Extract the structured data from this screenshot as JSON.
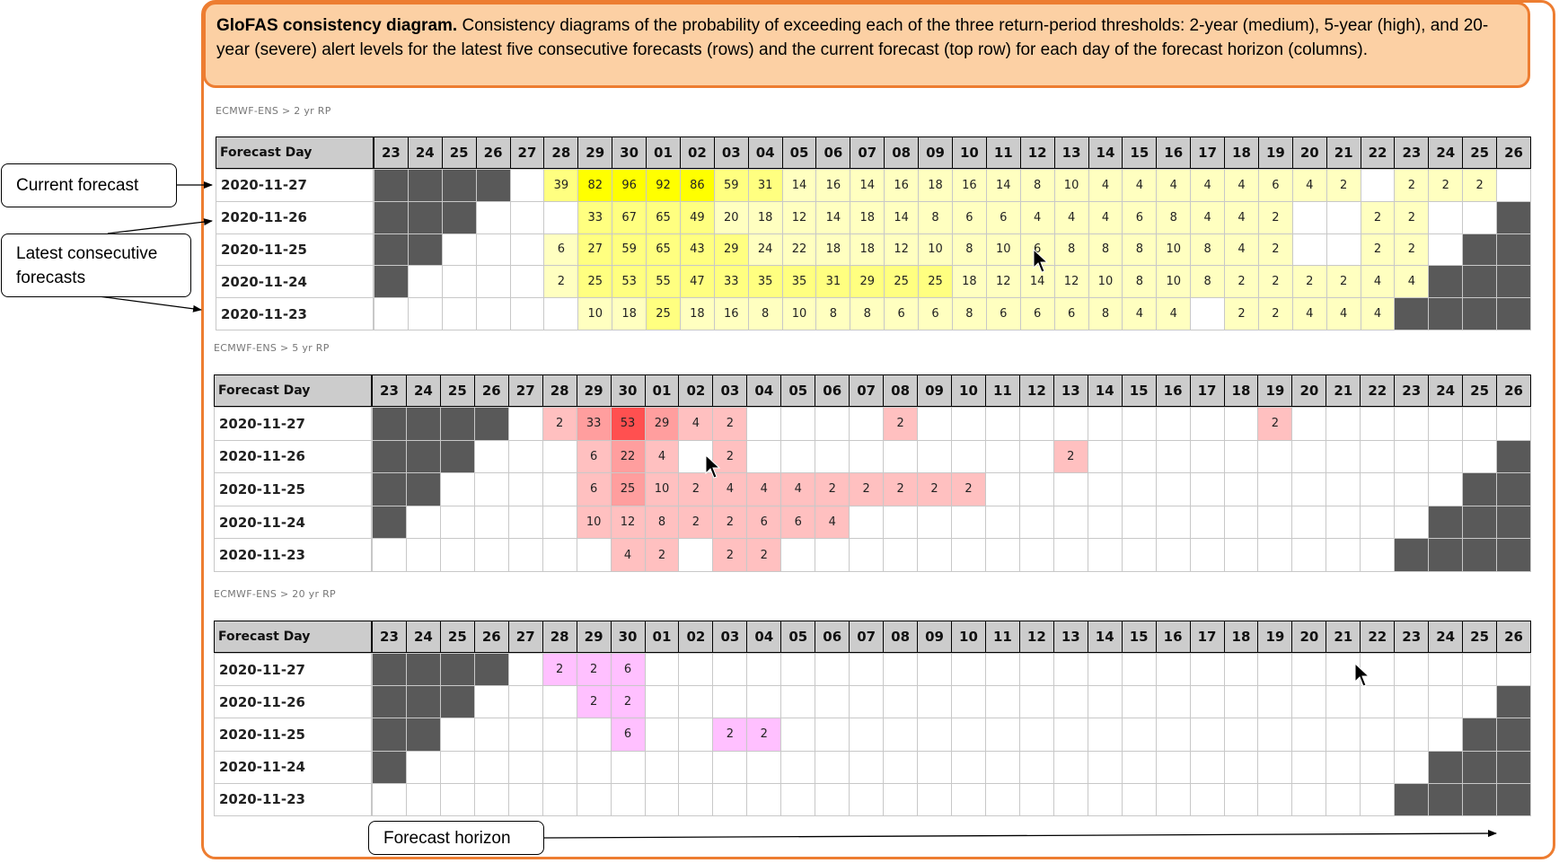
{
  "caption": {
    "bold": "GloFAS consistency diagram.",
    "text": " Consistency diagrams of the probability of exceeding each of the three return-period thresholds: 2-year (medium), 5-year (high), and 20-year (severe) alert levels for the latest five consecutive forecasts (rows) and the current forecast (top row) for each day of the forecast horizon (columns)."
  },
  "callouts": {
    "current": "Current forecast",
    "latest": "Latest consecutive forecasts",
    "horizon": "Forecast horizon"
  },
  "columns": [
    "23",
    "24",
    "25",
    "26",
    "27",
    "28",
    "29",
    "30",
    "01",
    "02",
    "03",
    "04",
    "05",
    "06",
    "07",
    "08",
    "09",
    "10",
    "11",
    "12",
    "13",
    "14",
    "15",
    "16",
    "17",
    "18",
    "19",
    "20",
    "21",
    "22",
    "23",
    "24",
    "25",
    "26"
  ],
  "header_first": "Forecast Day",
  "rows": [
    "2020-11-27",
    "2020-11-26",
    "2020-11-25",
    "2020-11-24",
    "2020-11-23"
  ],
  "colors": {
    "gray": "#595959",
    "yellow_light": "#ffffc0",
    "yellow_mid": "#ffff80",
    "yellow_strong": "#ffff00",
    "red_light": "#ffc0c0",
    "red_mid": "#ff9e9e",
    "red_strong": "#ff5050",
    "pink": "#ffc0ff",
    "accent": "#ed7d31"
  },
  "sections": [
    {
      "label": "ECMWF-ENS > 2 yr RP",
      "values": [
        [
          "G",
          "G",
          "G",
          "G",
          "",
          "39",
          "82",
          "96",
          "92",
          "86",
          "59",
          "31",
          "14",
          "16",
          "14",
          "16",
          "18",
          "16",
          "14",
          "8",
          "10",
          "4",
          "4",
          "4",
          "4",
          "4",
          "6",
          "4",
          "2",
          "",
          "2",
          "2",
          "2",
          ""
        ],
        [
          "G",
          "G",
          "G",
          "",
          "",
          "",
          "33",
          "67",
          "65",
          "49",
          "20",
          "18",
          "12",
          "14",
          "18",
          "14",
          "8",
          "6",
          "6",
          "4",
          "4",
          "4",
          "6",
          "8",
          "4",
          "4",
          "2",
          "",
          "",
          "2",
          "2",
          "",
          "",
          "G"
        ],
        [
          "G",
          "G",
          "",
          "",
          "",
          "6",
          "27",
          "59",
          "65",
          "43",
          "29",
          "24",
          "22",
          "18",
          "18",
          "12",
          "10",
          "8",
          "10",
          "6",
          "8",
          "8",
          "8",
          "10",
          "8",
          "4",
          "2",
          "",
          "",
          "2",
          "2",
          "",
          "G",
          "G"
        ],
        [
          "G",
          "",
          "",
          "",
          "",
          "2",
          "25",
          "53",
          "55",
          "47",
          "33",
          "35",
          "35",
          "31",
          "29",
          "25",
          "25",
          "18",
          "12",
          "14",
          "12",
          "10",
          "8",
          "10",
          "8",
          "2",
          "2",
          "2",
          "2",
          "4",
          "4",
          "G",
          "G",
          "G"
        ],
        [
          "",
          "",
          "",
          "",
          "",
          "",
          "10",
          "18",
          "25",
          "18",
          "16",
          "8",
          "10",
          "8",
          "8",
          "6",
          "6",
          "8",
          "6",
          "6",
          "6",
          "8",
          "4",
          "4",
          "",
          "2",
          "2",
          "4",
          "4",
          "4",
          "G",
          "G",
          "G",
          "G"
        ]
      ]
    },
    {
      "label": "ECMWF-ENS > 5 yr RP",
      "values": [
        [
          "G",
          "G",
          "G",
          "G",
          "",
          "2",
          "33",
          "53",
          "29",
          "4",
          "2",
          "",
          "",
          "",
          "",
          "2",
          "",
          "",
          "",
          "",
          "",
          "",
          "",
          "",
          "",
          "",
          "2",
          "",
          "",
          "",
          "",
          "",
          "",
          ""
        ],
        [
          "G",
          "G",
          "G",
          "",
          "",
          "",
          "6",
          "22",
          "4",
          "",
          "2",
          "",
          "",
          "",
          "",
          "",
          "",
          "",
          "",
          "",
          "2",
          "",
          "",
          "",
          "",
          "",
          "",
          "",
          "",
          "",
          "",
          "",
          "",
          "G"
        ],
        [
          "G",
          "G",
          "",
          "",
          "",
          "",
          "6",
          "25",
          "10",
          "2",
          "4",
          "4",
          "4",
          "2",
          "2",
          "2",
          "2",
          "2",
          "",
          "",
          "",
          "",
          "",
          "",
          "",
          "",
          "",
          "",
          "",
          "",
          "",
          "",
          "G",
          "G"
        ],
        [
          "G",
          "",
          "",
          "",
          "",
          "",
          "10",
          "12",
          "8",
          "2",
          "2",
          "6",
          "6",
          "4",
          "",
          "",
          "",
          "",
          "",
          "",
          "",
          "",
          "",
          "",
          "",
          "",
          "",
          "",
          "",
          "",
          "",
          "G",
          "G",
          "G"
        ],
        [
          "",
          "",
          "",
          "",
          "",
          "",
          "",
          "4",
          "2",
          "",
          "2",
          "2",
          "",
          "",
          "",
          "",
          "",
          "",
          "",
          "",
          "",
          "",
          "",
          "",
          "",
          "",
          "",
          "",
          "",
          "",
          "G",
          "G",
          "G",
          "G"
        ]
      ]
    },
    {
      "label": "ECMWF-ENS > 20 yr RP",
      "values": [
        [
          "G",
          "G",
          "G",
          "G",
          "",
          "2",
          "2",
          "6",
          "",
          "",
          "",
          "",
          "",
          "",
          "",
          "",
          "",
          "",
          "",
          "",
          "",
          "",
          "",
          "",
          "",
          "",
          "",
          "",
          "",
          "",
          "",
          "",
          "",
          ""
        ],
        [
          "G",
          "G",
          "G",
          "",
          "",
          "",
          "2",
          "2",
          "",
          "",
          "",
          "",
          "",
          "",
          "",
          "",
          "",
          "",
          "",
          "",
          "",
          "",
          "",
          "",
          "",
          "",
          "",
          "",
          "",
          "",
          "",
          "",
          "",
          "G"
        ],
        [
          "G",
          "G",
          "",
          "",
          "",
          "",
          "",
          "6",
          "",
          "",
          "2",
          "2",
          "",
          "",
          "",
          "",
          "",
          "",
          "",
          "",
          "",
          "",
          "",
          "",
          "",
          "",
          "",
          "",
          "",
          "",
          "",
          "",
          "G",
          "G"
        ],
        [
          "G",
          "",
          "",
          "",
          "",
          "",
          "",
          "",
          "",
          "",
          "",
          "",
          "",
          "",
          "",
          "",
          "",
          "",
          "",
          "",
          "",
          "",
          "",
          "",
          "",
          "",
          "",
          "",
          "",
          "",
          "",
          "G",
          "G",
          "G"
        ],
        [
          "",
          "",
          "",
          "",
          "",
          "",
          "",
          "",
          "",
          "",
          "",
          "",
          "",
          "",
          "",
          "",
          "",
          "",
          "",
          "",
          "",
          "",
          "",
          "",
          "",
          "",
          "",
          "",
          "",
          "",
          "G",
          "G",
          "G",
          "G"
        ]
      ]
    }
  ]
}
